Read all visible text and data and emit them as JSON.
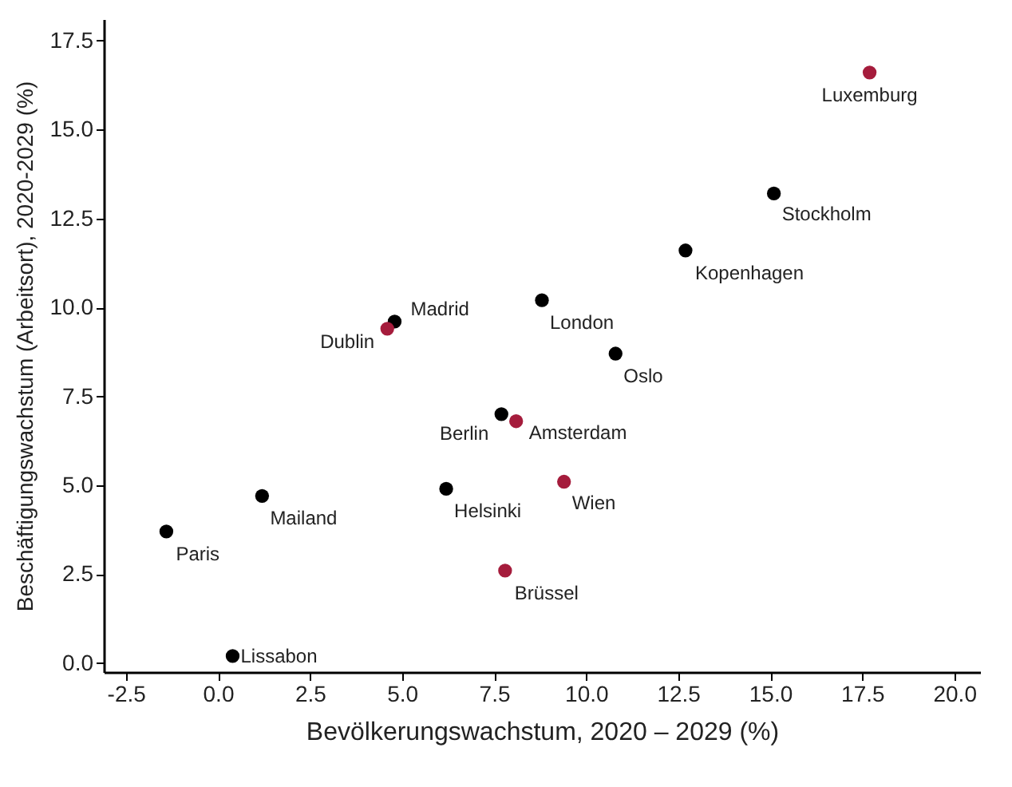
{
  "chart_data": {
    "type": "scatter",
    "xlabel": "Bevölkerungswachstum, 2020 – 2029 (%)",
    "ylabel": "Beschäftigungswachstum (Arbeitsort), 2020-2029 (%)",
    "x": [
      17.7,
      15.1,
      12.7,
      8.8,
      4.8,
      4.6,
      10.8,
      7.7,
      8.1,
      9.4,
      6.2,
      1.2,
      -1.4,
      7.8,
      0.4
    ],
    "series": [
      {
        "values": [
          16.6,
          13.2,
          11.6,
          10.2,
          9.6,
          9.4,
          8.7,
          7.0,
          6.8,
          5.1,
          4.9,
          4.7,
          3.7,
          2.6,
          0.2
        ],
        "colors": [
          "#a51c3c",
          "#000000",
          "#000000",
          "#000000",
          "#000000",
          "#a51c3c",
          "#000000",
          "#000000",
          "#a51c3c",
          "#a51c3c",
          "#000000",
          "#000000",
          "#000000",
          "#a51c3c",
          "#000000"
        ]
      }
    ],
    "annotations": [
      {
        "text": "Luxemburg",
        "x": 17.7,
        "y": 16.6
      },
      {
        "text": "Stockholm",
        "x": 15.1,
        "y": 13.2
      },
      {
        "text": "Kopenhagen",
        "x": 12.7,
        "y": 11.6
      },
      {
        "text": "London",
        "x": 8.8,
        "y": 10.2
      },
      {
        "text": "Madrid",
        "x": 4.8,
        "y": 9.6
      },
      {
        "text": "Dublin",
        "x": 4.6,
        "y": 9.4
      },
      {
        "text": "Oslo",
        "x": 10.8,
        "y": 8.7
      },
      {
        "text": "Berlin",
        "x": 7.7,
        "y": 7.0
      },
      {
        "text": "Amsterdam",
        "x": 8.1,
        "y": 6.8
      },
      {
        "text": "Wien",
        "x": 9.4,
        "y": 5.1
      },
      {
        "text": "Helsinki",
        "x": 6.2,
        "y": 4.9
      },
      {
        "text": "Mailand",
        "x": 1.2,
        "y": 4.7
      },
      {
        "text": "Paris",
        "x": -1.4,
        "y": 3.7
      },
      {
        "text": "Brüssel",
        "x": 7.8,
        "y": 2.6
      },
      {
        "text": "Lissabon",
        "x": 0.4,
        "y": 0.2
      }
    ],
    "xlim": [
      -3.1,
      20.7
    ],
    "ylim": [
      -0.25,
      18.1
    ],
    "xticks": [
      {
        "value": -2.5,
        "label": "-2.5"
      },
      {
        "value": 0,
        "label": "0.0"
      },
      {
        "value": 2.5,
        "label": "2.5"
      },
      {
        "value": 5,
        "label": "5.0"
      },
      {
        "value": 7.5,
        "label": "7.5"
      },
      {
        "value": 10,
        "label": "10.0"
      },
      {
        "value": 12.5,
        "label": "12.5"
      },
      {
        "value": 15,
        "label": "15.0"
      },
      {
        "value": 17.5,
        "label": "17.5"
      },
      {
        "value": 20,
        "label": "20.0"
      }
    ],
    "yticks": [
      {
        "value": 0,
        "label": "0.0"
      },
      {
        "value": 2.5,
        "label": "2.5"
      },
      {
        "value": 5,
        "label": "5.0"
      },
      {
        "value": 7.5,
        "label": "7.5"
      },
      {
        "value": 10,
        "label": "10.0"
      },
      {
        "value": 12.5,
        "label": "12.5"
      },
      {
        "value": 15,
        "label": "15.0"
      },
      {
        "value": 17.5,
        "label": "17.5"
      }
    ],
    "marker": "circle"
  }
}
